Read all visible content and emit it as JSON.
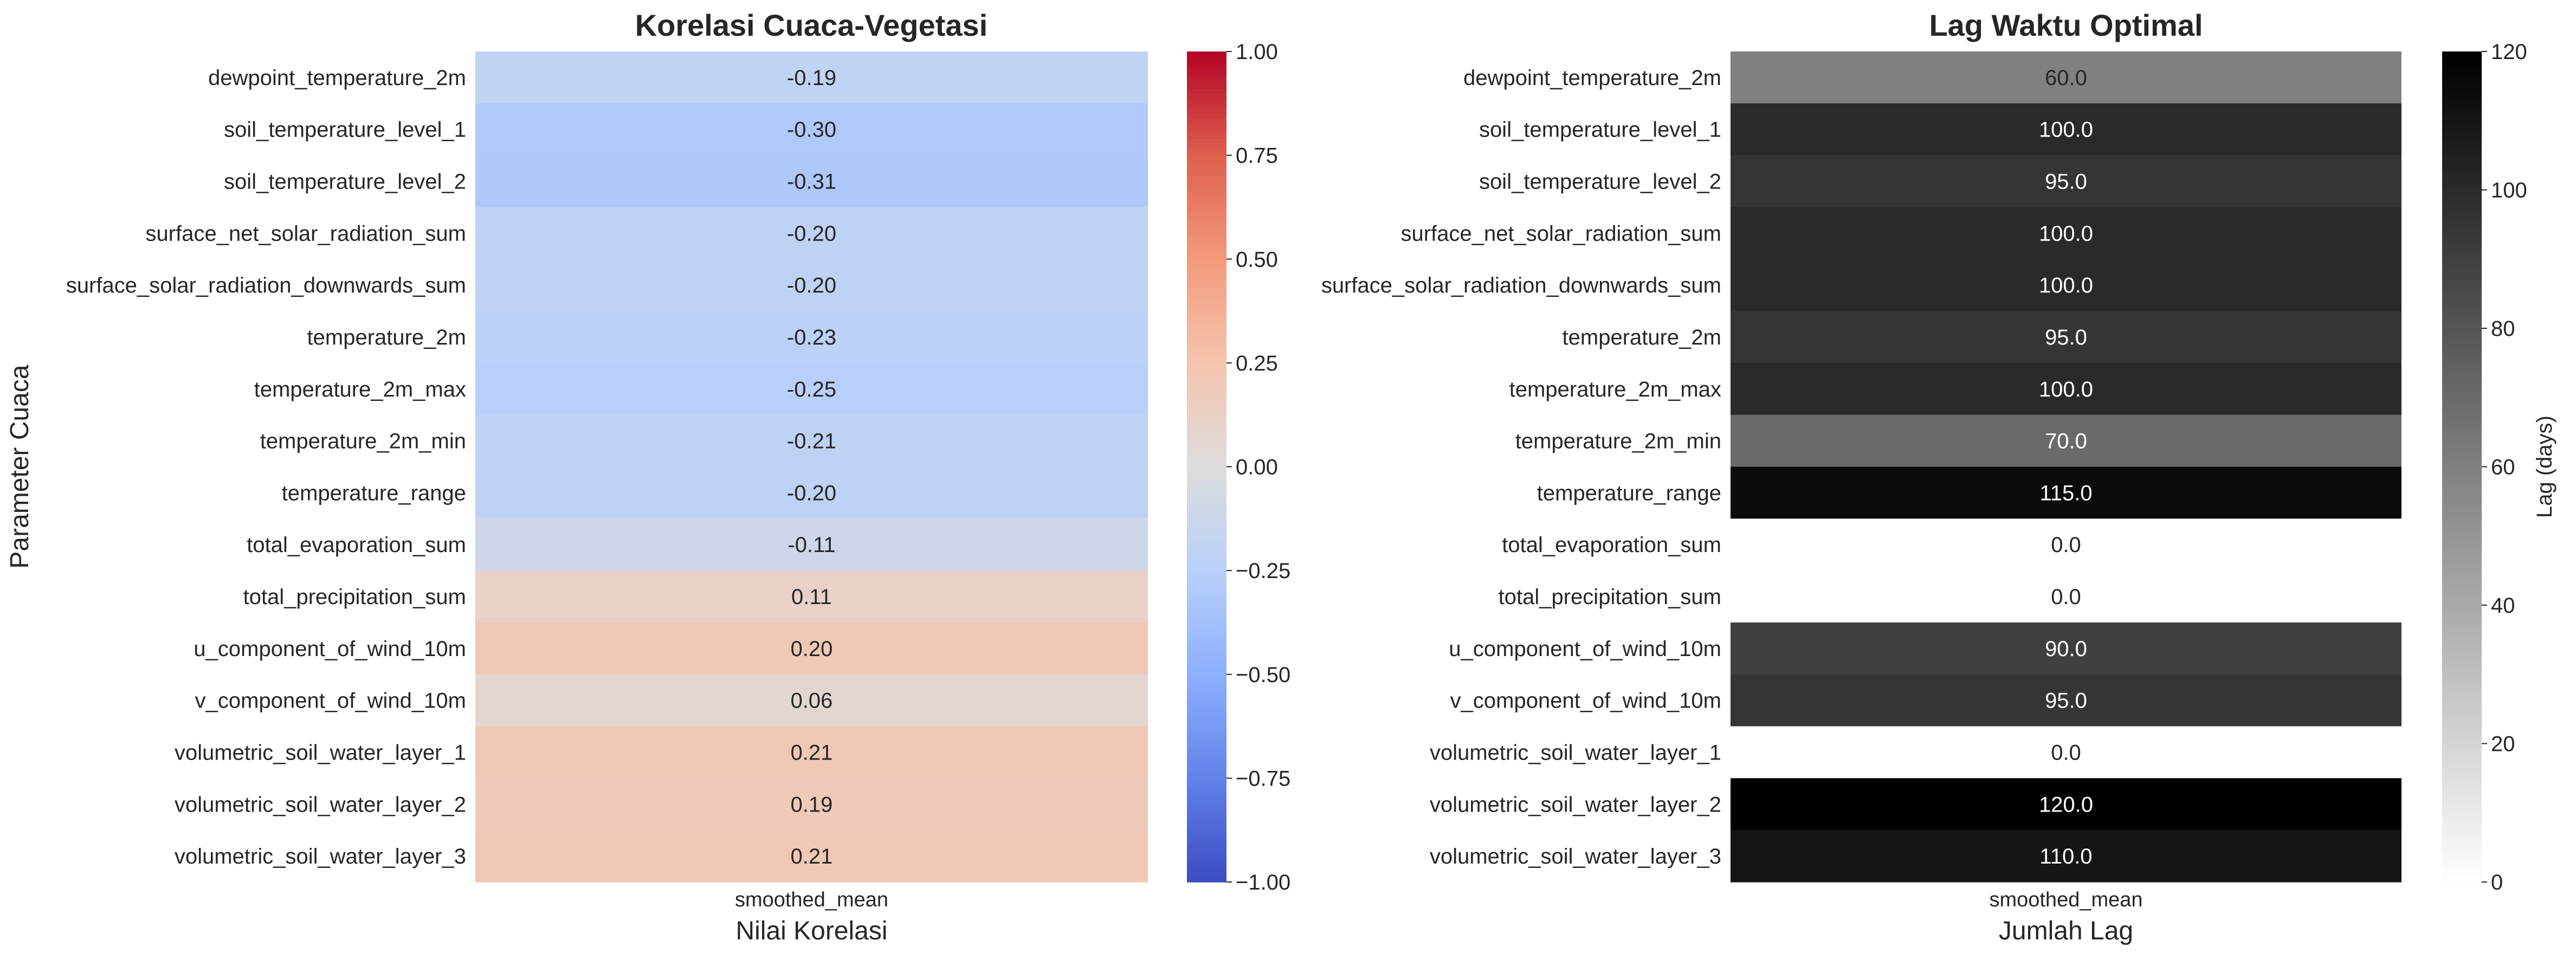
{
  "chart_data": [
    {
      "type": "heatmap",
      "title": "Korelasi Cuaca-Vegetasi",
      "xlabel": "Nilai Korelasi",
      "ylabel": "Parameter Cuaca",
      "column": "smoothed_mean",
      "rows": [
        "dewpoint_temperature_2m",
        "soil_temperature_level_1",
        "soil_temperature_level_2",
        "surface_net_solar_radiation_sum",
        "surface_solar_radiation_downwards_sum",
        "temperature_2m",
        "temperature_2m_max",
        "temperature_2m_min",
        "temperature_range",
        "total_evaporation_sum",
        "total_precipitation_sum",
        "u_component_of_wind_10m",
        "v_component_of_wind_10m",
        "volumetric_soil_water_layer_1",
        "volumetric_soil_water_layer_2",
        "volumetric_soil_water_layer_3"
      ],
      "values": [
        -0.19,
        -0.3,
        -0.31,
        -0.2,
        -0.2,
        -0.23,
        -0.25,
        -0.21,
        -0.2,
        -0.11,
        0.11,
        0.2,
        0.06,
        0.21,
        0.19,
        0.21
      ],
      "labels": [
        "-0.19",
        "-0.30",
        "-0.31",
        "-0.20",
        "-0.20",
        "-0.23",
        "-0.25",
        "-0.21",
        "-0.20",
        "-0.11",
        "0.11",
        "0.20",
        "0.06",
        "0.21",
        "0.19",
        "0.21"
      ],
      "colormap": "coolwarm",
      "vmin": -1.0,
      "vmax": 1.0,
      "colorbar_ticks": [
        1.0,
        0.75,
        0.5,
        0.25,
        0.0,
        -0.25,
        -0.5,
        -0.75,
        -1.0
      ],
      "colorbar_tick_labels": [
        "1.00",
        "0.75",
        "0.50",
        "0.25",
        "0.00",
        "−0.25",
        "−0.50",
        "−0.75",
        "−1.00"
      ],
      "colorbar_label": ""
    },
    {
      "type": "heatmap",
      "title": "Lag Waktu Optimal",
      "xlabel": "Jumlah Lag",
      "ylabel": "",
      "column": "smoothed_mean",
      "rows": [
        "dewpoint_temperature_2m",
        "soil_temperature_level_1",
        "soil_temperature_level_2",
        "surface_net_solar_radiation_sum",
        "surface_solar_radiation_downwards_sum",
        "temperature_2m",
        "temperature_2m_max",
        "temperature_2m_min",
        "temperature_range",
        "total_evaporation_sum",
        "total_precipitation_sum",
        "u_component_of_wind_10m",
        "v_component_of_wind_10m",
        "volumetric_soil_water_layer_1",
        "volumetric_soil_water_layer_2",
        "volumetric_soil_water_layer_3"
      ],
      "values": [
        60,
        100,
        95,
        100,
        100,
        95,
        100,
        70,
        115,
        0,
        0,
        90,
        95,
        0,
        120,
        110
      ],
      "labels": [
        "60.0",
        "100.0",
        "95.0",
        "100.0",
        "100.0",
        "95.0",
        "100.0",
        "70.0",
        "115.0",
        "0.0",
        "0.0",
        "90.0",
        "95.0",
        "0.0",
        "120.0",
        "110.0"
      ],
      "colormap": "Greys",
      "vmin": 0,
      "vmax": 120,
      "colorbar_ticks": [
        120,
        100,
        80,
        60,
        40,
        20,
        0
      ],
      "colorbar_tick_labels": [
        "120",
        "100",
        "80",
        "60",
        "40",
        "20",
        "0"
      ],
      "colorbar_label": "Lag (days)"
    }
  ]
}
